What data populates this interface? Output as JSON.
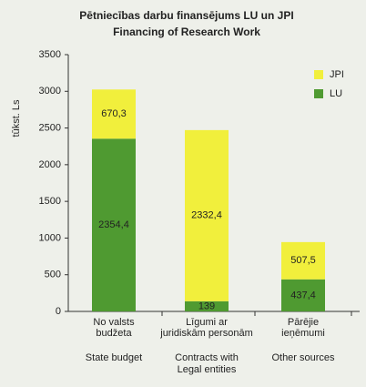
{
  "chart_data": {
    "type": "stacked_bar",
    "title": "Pētniecības darbu finansējums LU un JPI",
    "subtitle": "Financing of Research Work",
    "y_label": "tūkst. Ls",
    "categories": [
      [
        "No valsts",
        "budžeta"
      ],
      [
        "Līgumi ar",
        "juridiskām personām"
      ],
      [
        "Pārējie",
        "ieņēmumi"
      ]
    ],
    "categories_en": [
      [
        "State budget"
      ],
      [
        "Contracts with",
        "Legal entities"
      ],
      [
        "Other sources"
      ]
    ],
    "series": [
      {
        "name": "LU",
        "color": "#4f9a31",
        "values": [
          2354.4,
          139,
          437.4
        ],
        "value_labels": [
          "2354,4",
          "139",
          "437,4"
        ]
      },
      {
        "name": "JPI",
        "color": "#f1ef3c",
        "values": [
          670.3,
          2332.4,
          507.5
        ],
        "value_labels": [
          "670,3",
          "2332,4",
          "507,5"
        ]
      }
    ],
    "ylim": [
      0,
      3500
    ],
    "yticks": [
      0,
      500,
      1000,
      1500,
      2000,
      2500,
      3000,
      3500
    ],
    "legend": "top-right"
  }
}
